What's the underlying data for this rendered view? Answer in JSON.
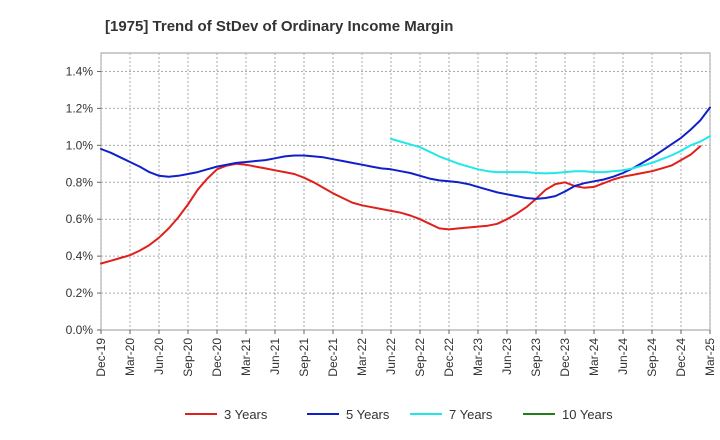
{
  "chart_data": {
    "type": "line",
    "title": "[1975]  Trend of StDev of Ordinary Income Margin",
    "xlabel": "",
    "ylabel": "",
    "x_ticks": [
      "Dec-19",
      "Mar-20",
      "Jun-20",
      "Sep-20",
      "Dec-20",
      "Mar-21",
      "Jun-21",
      "Sep-21",
      "Dec-21",
      "Mar-22",
      "Jun-22",
      "Sep-22",
      "Dec-22",
      "Mar-23",
      "Jun-23",
      "Sep-23",
      "Dec-23",
      "Mar-24",
      "Jun-24",
      "Sep-24",
      "Dec-24",
      "Mar-25"
    ],
    "y_ticks": [
      "0.0%",
      "0.2%",
      "0.4%",
      "0.6%",
      "0.8%",
      "1.0%",
      "1.2%",
      "1.4%"
    ],
    "ylim": [
      0,
      1.5
    ],
    "grid": true,
    "legend_position": "bottom",
    "series": [
      {
        "name": "3 Years",
        "color": "#e0201c",
        "points": [
          [
            "Dec-19",
            0.36
          ],
          [
            "Jan-20",
            0.375
          ],
          [
            "Feb-20",
            0.39
          ],
          [
            "Mar-20",
            0.405
          ],
          [
            "Apr-20",
            0.43
          ],
          [
            "May-20",
            0.46
          ],
          [
            "Jun-20",
            0.5
          ],
          [
            "Jul-20",
            0.55
          ],
          [
            "Aug-20",
            0.61
          ],
          [
            "Sep-20",
            0.68
          ],
          [
            "Oct-20",
            0.76
          ],
          [
            "Nov-20",
            0.82
          ],
          [
            "Dec-20",
            0.87
          ],
          [
            "Jan-21",
            0.89
          ],
          [
            "Feb-21",
            0.9
          ],
          [
            "Mar-21",
            0.895
          ],
          [
            "Apr-21",
            0.885
          ],
          [
            "May-21",
            0.875
          ],
          [
            "Jun-21",
            0.865
          ],
          [
            "Jul-21",
            0.855
          ],
          [
            "Aug-21",
            0.845
          ],
          [
            "Sep-21",
            0.825
          ],
          [
            "Oct-21",
            0.8
          ],
          [
            "Nov-21",
            0.77
          ],
          [
            "Dec-21",
            0.74
          ],
          [
            "Jan-22",
            0.715
          ],
          [
            "Feb-22",
            0.69
          ],
          [
            "Mar-22",
            0.675
          ],
          [
            "Apr-22",
            0.665
          ],
          [
            "May-22",
            0.655
          ],
          [
            "Jun-22",
            0.645
          ],
          [
            "Jul-22",
            0.635
          ],
          [
            "Aug-22",
            0.62
          ],
          [
            "Sep-22",
            0.6
          ],
          [
            "Oct-22",
            0.575
          ],
          [
            "Nov-22",
            0.55
          ],
          [
            "Dec-22",
            0.545
          ],
          [
            "Jan-23",
            0.55
          ],
          [
            "Feb-23",
            0.555
          ],
          [
            "Mar-23",
            0.56
          ],
          [
            "Apr-23",
            0.565
          ],
          [
            "May-23",
            0.575
          ],
          [
            "Jun-23",
            0.6
          ],
          [
            "Jul-23",
            0.63
          ],
          [
            "Aug-23",
            0.665
          ],
          [
            "Sep-23",
            0.71
          ],
          [
            "Oct-23",
            0.76
          ],
          [
            "Nov-23",
            0.79
          ],
          [
            "Dec-23",
            0.8
          ],
          [
            "Jan-24",
            0.78
          ],
          [
            "Feb-24",
            0.77
          ],
          [
            "Mar-24",
            0.775
          ],
          [
            "Apr-24",
            0.795
          ],
          [
            "May-24",
            0.815
          ],
          [
            "Jun-24",
            0.83
          ],
          [
            "Jul-24",
            0.84
          ],
          [
            "Aug-24",
            0.85
          ],
          [
            "Sep-24",
            0.86
          ],
          [
            "Oct-24",
            0.875
          ],
          [
            "Nov-24",
            0.89
          ],
          [
            "Dec-24",
            0.92
          ],
          [
            "Jan-25",
            0.95
          ],
          [
            "Feb-25",
            0.995
          ]
        ]
      },
      {
        "name": "5 Years",
        "color": "#1020c8",
        "points": [
          [
            "Dec-19",
            0.98
          ],
          [
            "Jan-20",
            0.96
          ],
          [
            "Feb-20",
            0.935
          ],
          [
            "Mar-20",
            0.91
          ],
          [
            "Apr-20",
            0.885
          ],
          [
            "May-20",
            0.855
          ],
          [
            "Jun-20",
            0.835
          ],
          [
            "Jul-20",
            0.83
          ],
          [
            "Aug-20",
            0.835
          ],
          [
            "Sep-20",
            0.845
          ],
          [
            "Oct-20",
            0.855
          ],
          [
            "Nov-20",
            0.87
          ],
          [
            "Dec-20",
            0.885
          ],
          [
            "Jan-21",
            0.895
          ],
          [
            "Feb-21",
            0.905
          ],
          [
            "Mar-21",
            0.91
          ],
          [
            "Apr-21",
            0.915
          ],
          [
            "May-21",
            0.92
          ],
          [
            "Jun-21",
            0.93
          ],
          [
            "Jul-21",
            0.94
          ],
          [
            "Aug-21",
            0.945
          ],
          [
            "Sep-21",
            0.945
          ],
          [
            "Oct-21",
            0.94
          ],
          [
            "Nov-21",
            0.935
          ],
          [
            "Dec-21",
            0.925
          ],
          [
            "Jan-22",
            0.915
          ],
          [
            "Feb-22",
            0.905
          ],
          [
            "Mar-22",
            0.895
          ],
          [
            "Apr-22",
            0.885
          ],
          [
            "May-22",
            0.875
          ],
          [
            "Jun-22",
            0.87
          ],
          [
            "Jul-22",
            0.86
          ],
          [
            "Aug-22",
            0.85
          ],
          [
            "Sep-22",
            0.835
          ],
          [
            "Oct-22",
            0.82
          ],
          [
            "Nov-22",
            0.81
          ],
          [
            "Dec-22",
            0.805
          ],
          [
            "Jan-23",
            0.8
          ],
          [
            "Feb-23",
            0.79
          ],
          [
            "Mar-23",
            0.775
          ],
          [
            "Apr-23",
            0.76
          ],
          [
            "May-23",
            0.745
          ],
          [
            "Jun-23",
            0.735
          ],
          [
            "Jul-23",
            0.725
          ],
          [
            "Aug-23",
            0.715
          ],
          [
            "Sep-23",
            0.71
          ],
          [
            "Oct-23",
            0.715
          ],
          [
            "Nov-23",
            0.725
          ],
          [
            "Dec-23",
            0.75
          ],
          [
            "Jan-24",
            0.78
          ],
          [
            "Feb-24",
            0.795
          ],
          [
            "Mar-24",
            0.805
          ],
          [
            "Apr-24",
            0.815
          ],
          [
            "May-24",
            0.83
          ],
          [
            "Jun-24",
            0.85
          ],
          [
            "Jul-24",
            0.875
          ],
          [
            "Aug-24",
            0.905
          ],
          [
            "Sep-24",
            0.935
          ],
          [
            "Oct-24",
            0.97
          ],
          [
            "Nov-24",
            1.005
          ],
          [
            "Dec-24",
            1.04
          ],
          [
            "Jan-25",
            1.085
          ],
          [
            "Feb-25",
            1.135
          ],
          [
            "Mar-25",
            1.205
          ]
        ]
      },
      {
        "name": "7 Years",
        "color": "#20e8e8",
        "points": [
          [
            "Jun-22",
            1.035
          ],
          [
            "Jul-22",
            1.02
          ],
          [
            "Aug-22",
            1.005
          ],
          [
            "Sep-22",
            0.99
          ],
          [
            "Oct-22",
            0.965
          ],
          [
            "Nov-22",
            0.94
          ],
          [
            "Dec-22",
            0.92
          ],
          [
            "Jan-23",
            0.9
          ],
          [
            "Feb-23",
            0.885
          ],
          [
            "Mar-23",
            0.87
          ],
          [
            "Apr-23",
            0.86
          ],
          [
            "May-23",
            0.855
          ],
          [
            "Jun-23",
            0.855
          ],
          [
            "Jul-23",
            0.855
          ],
          [
            "Aug-23",
            0.855
          ],
          [
            "Sep-23",
            0.85
          ],
          [
            "Oct-23",
            0.848
          ],
          [
            "Nov-23",
            0.85
          ],
          [
            "Dec-23",
            0.855
          ],
          [
            "Jan-24",
            0.86
          ],
          [
            "Feb-24",
            0.86
          ],
          [
            "Mar-24",
            0.855
          ],
          [
            "Apr-24",
            0.855
          ],
          [
            "May-24",
            0.86
          ],
          [
            "Jun-24",
            0.865
          ],
          [
            "Jul-24",
            0.875
          ],
          [
            "Aug-24",
            0.89
          ],
          [
            "Sep-24",
            0.905
          ],
          [
            "Oct-24",
            0.925
          ],
          [
            "Nov-24",
            0.945
          ],
          [
            "Dec-24",
            0.97
          ],
          [
            "Jan-25",
            1.0
          ],
          [
            "Feb-25",
            1.02
          ],
          [
            "Mar-25",
            1.05
          ]
        ]
      },
      {
        "name": "10 Years",
        "color": "#208020",
        "points": []
      }
    ]
  }
}
